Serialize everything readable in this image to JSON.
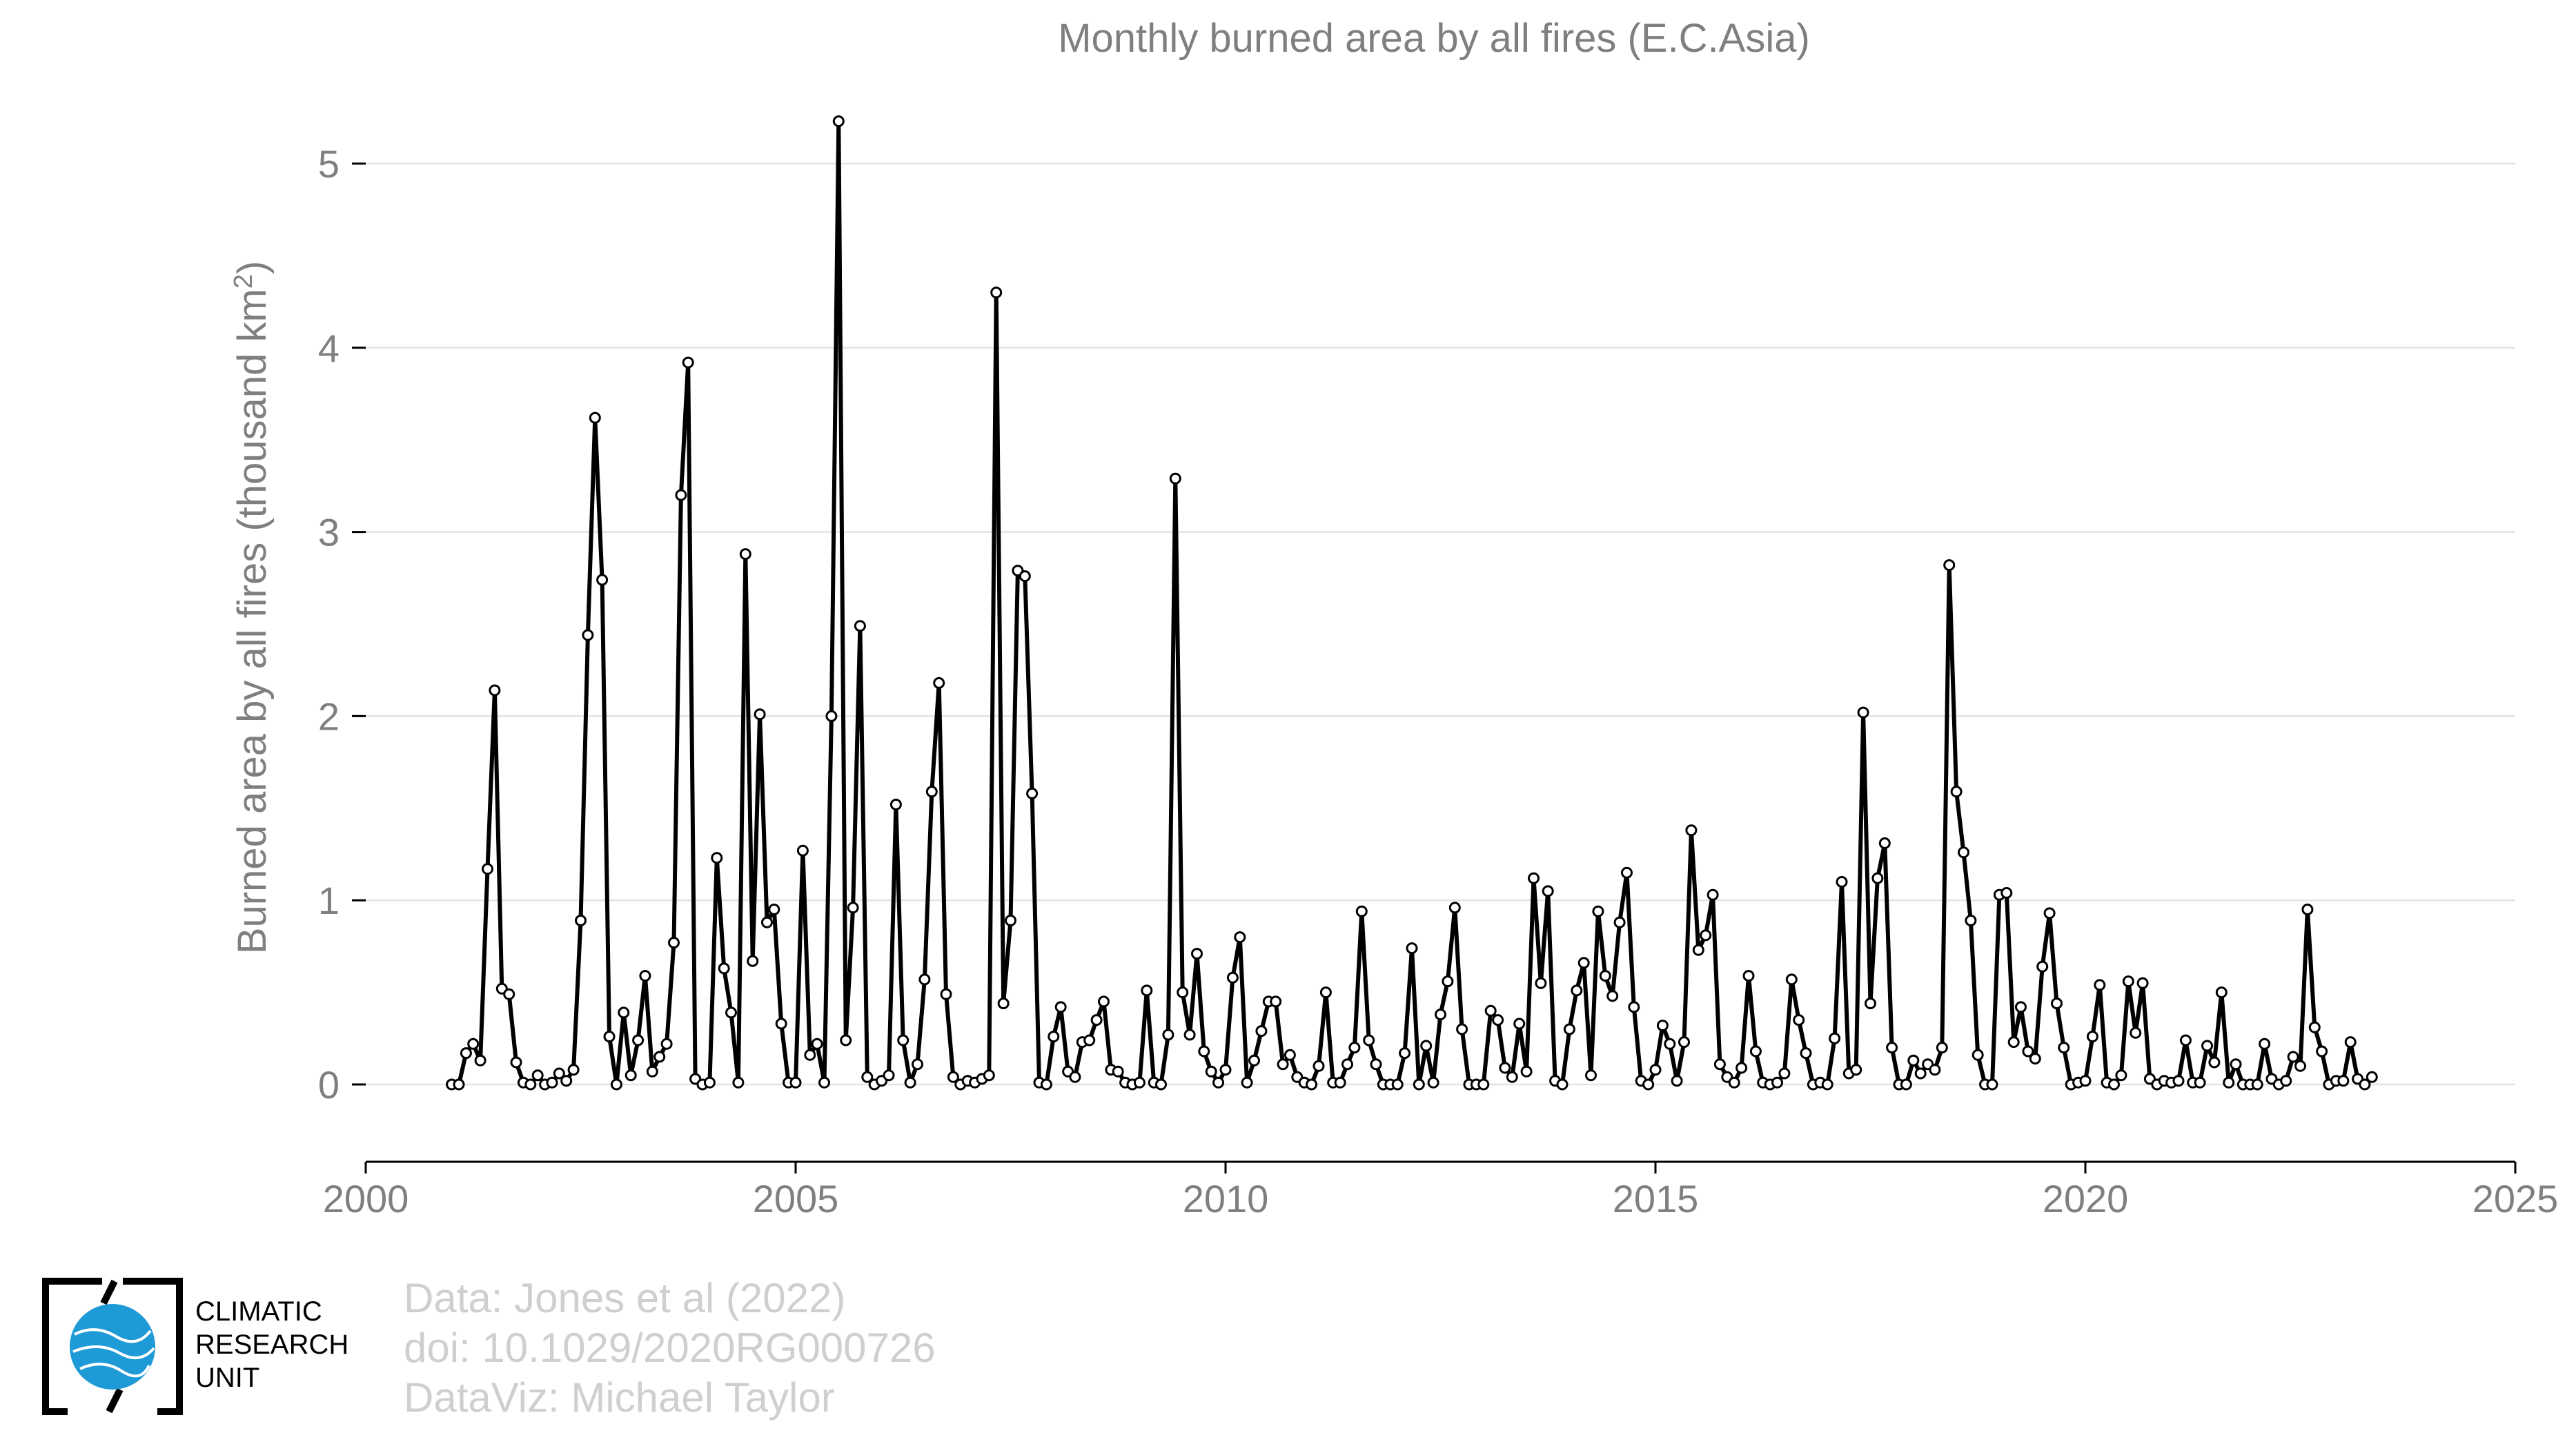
{
  "chart_data": {
    "type": "line",
    "title": "Monthly burned area by all fires (E.C.Asia)",
    "ylabel": "Burned area by all fires (thousand km²)",
    "xlabel": "",
    "xlim": [
      2000,
      2025
    ],
    "ylim": [
      -0.4,
      5.3
    ],
    "xticks": [
      2000,
      2005,
      2010,
      2015,
      2020,
      2025
    ],
    "yticks": [
      0,
      1,
      2,
      3,
      4,
      5
    ],
    "grid": "horizontal",
    "line_color": "#000000",
    "marker": "open-circle",
    "series": [
      {
        "x_start": 2001.0,
        "x_step": 0.08333333,
        "values": [
          0.0,
          0.0,
          0.17,
          0.22,
          0.13,
          1.17,
          2.14,
          0.52,
          0.49,
          0.12,
          0.01,
          0.0,
          0.05,
          0.0,
          0.01,
          0.06,
          0.02,
          0.08,
          0.89,
          2.44,
          3.62,
          2.74,
          0.26,
          0.0,
          0.39,
          0.05,
          0.24,
          0.59,
          0.07,
          0.15,
          0.22,
          0.77,
          3.2,
          3.92,
          0.03,
          0.0,
          0.01,
          1.23,
          0.63,
          0.39,
          0.01,
          2.88,
          0.67,
          2.01,
          0.88,
          0.95,
          0.33,
          0.01,
          0.01,
          1.27,
          0.16,
          0.22,
          0.01,
          2.0,
          5.23,
          0.24,
          0.96,
          2.49,
          0.04,
          0.0,
          0.02,
          0.05,
          1.52,
          0.24,
          0.01,
          0.11,
          0.57,
          1.59,
          2.18,
          0.49,
          0.04,
          0.0,
          0.02,
          0.01,
          0.03,
          0.05,
          4.3,
          0.44,
          0.89,
          2.79,
          2.76,
          1.58,
          0.01,
          0.0,
          0.26,
          0.42,
          0.07,
          0.04,
          0.23,
          0.24,
          0.35,
          0.45,
          0.08,
          0.07,
          0.01,
          0.0,
          0.01,
          0.51,
          0.01,
          0.0,
          0.27,
          3.29,
          0.5,
          0.27,
          0.71,
          0.18,
          0.07,
          0.01,
          0.08,
          0.58,
          0.8,
          0.01,
          0.13,
          0.29,
          0.45,
          0.45,
          0.11,
          0.16,
          0.04,
          0.01,
          0.0,
          0.1,
          0.5,
          0.01,
          0.01,
          0.11,
          0.2,
          0.94,
          0.24,
          0.11,
          0.0,
          0.0,
          0.0,
          0.17,
          0.74,
          0.0,
          0.21,
          0.01,
          0.38,
          0.56,
          0.96,
          0.3,
          0.0,
          0.0,
          0.0,
          0.4,
          0.35,
          0.09,
          0.04,
          0.33,
          0.07,
          1.12,
          0.55,
          1.05,
          0.02,
          0.0,
          0.3,
          0.51,
          0.66,
          0.05,
          0.94,
          0.59,
          0.48,
          0.88,
          1.15,
          0.42,
          0.02,
          0.0,
          0.08,
          0.32,
          0.22,
          0.02,
          0.23,
          1.38,
          0.73,
          0.81,
          1.03,
          0.11,
          0.04,
          0.01,
          0.09,
          0.59,
          0.18,
          0.01,
          0.0,
          0.01,
          0.06,
          0.57,
          0.35,
          0.17,
          0.0,
          0.01,
          0.0,
          0.25,
          1.1,
          0.06,
          0.08,
          2.02,
          0.44,
          1.12,
          1.31,
          0.2,
          0.0,
          0.0,
          0.13,
          0.06,
          0.11,
          0.08,
          0.2,
          2.82,
          1.59,
          1.26,
          0.89,
          0.16,
          0.0,
          0.0,
          1.03,
          1.04,
          0.23,
          0.42,
          0.18,
          0.14,
          0.64,
          0.93,
          0.44,
          0.2,
          0.0,
          0.01,
          0.02,
          0.26,
          0.54,
          0.01,
          0.0,
          0.05,
          0.56,
          0.28,
          0.55,
          0.03,
          0.0,
          0.02,
          0.01,
          0.02,
          0.24,
          0.01,
          0.01,
          0.21,
          0.12,
          0.5,
          0.01,
          0.11,
          0.0,
          0.0,
          0.0,
          0.22,
          0.03,
          0.0,
          0.02,
          0.15,
          0.1,
          0.95,
          0.31,
          0.18,
          0.0,
          0.02,
          0.02,
          0.23,
          0.03,
          0.0,
          0.04
        ]
      }
    ]
  },
  "footer": {
    "credit_1": "Data: Jones et al (2022)",
    "credit_2": "doi: 10.1029/2020RG000726",
    "credit_3": "DataViz: Michael Taylor",
    "logo_line_1": "CLIMATIC",
    "logo_line_2": "RESEARCH",
    "logo_line_3": "UNIT",
    "logo_color": "#1e9ad6"
  }
}
